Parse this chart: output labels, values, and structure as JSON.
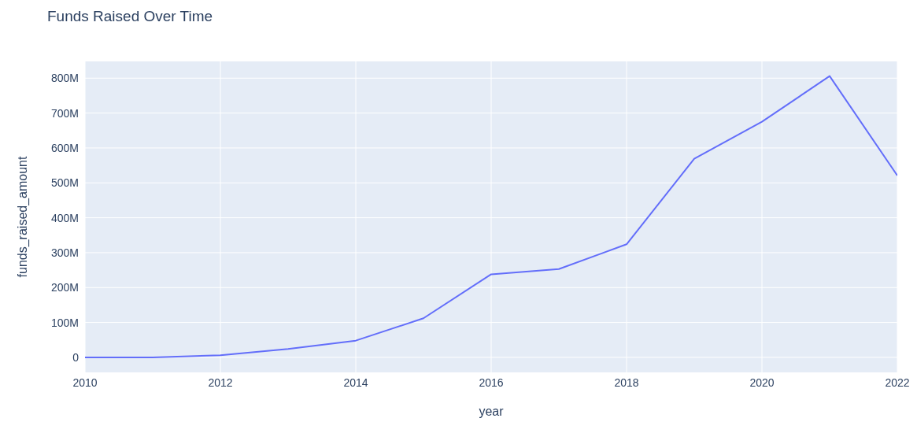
{
  "chart_data": {
    "type": "line",
    "title": "Funds Raised Over Time",
    "xlabel": "year",
    "ylabel": "funds_raised_amount",
    "x": [
      2010,
      2011,
      2012,
      2013,
      2014,
      2015,
      2016,
      2017,
      2018,
      2019,
      2020,
      2021,
      2022
    ],
    "series": [
      {
        "color": "#636efa",
        "values": [
          0,
          0,
          6000000,
          24000000,
          48000000,
          112000000,
          238000000,
          253000000,
          324000000,
          569000000,
          675000000,
          806000000,
          521000000
        ]
      }
    ],
    "xlim": [
      2010,
      2022
    ],
    "xticks": [
      2010,
      2012,
      2014,
      2016,
      2018,
      2020,
      2022
    ],
    "ylim": [
      -43000000,
      848000000
    ],
    "yticks": [
      {
        "value": 0,
        "label": "0"
      },
      {
        "value": 100000000,
        "label": "100M"
      },
      {
        "value": 200000000,
        "label": "200M"
      },
      {
        "value": 300000000,
        "label": "300M"
      },
      {
        "value": 400000000,
        "label": "400M"
      },
      {
        "value": 500000000,
        "label": "500M"
      },
      {
        "value": 600000000,
        "label": "600M"
      },
      {
        "value": 700000000,
        "label": "700M"
      },
      {
        "value": 800000000,
        "label": "800M"
      }
    ],
    "grid": true,
    "marker": "none",
    "line_style": "solid"
  }
}
